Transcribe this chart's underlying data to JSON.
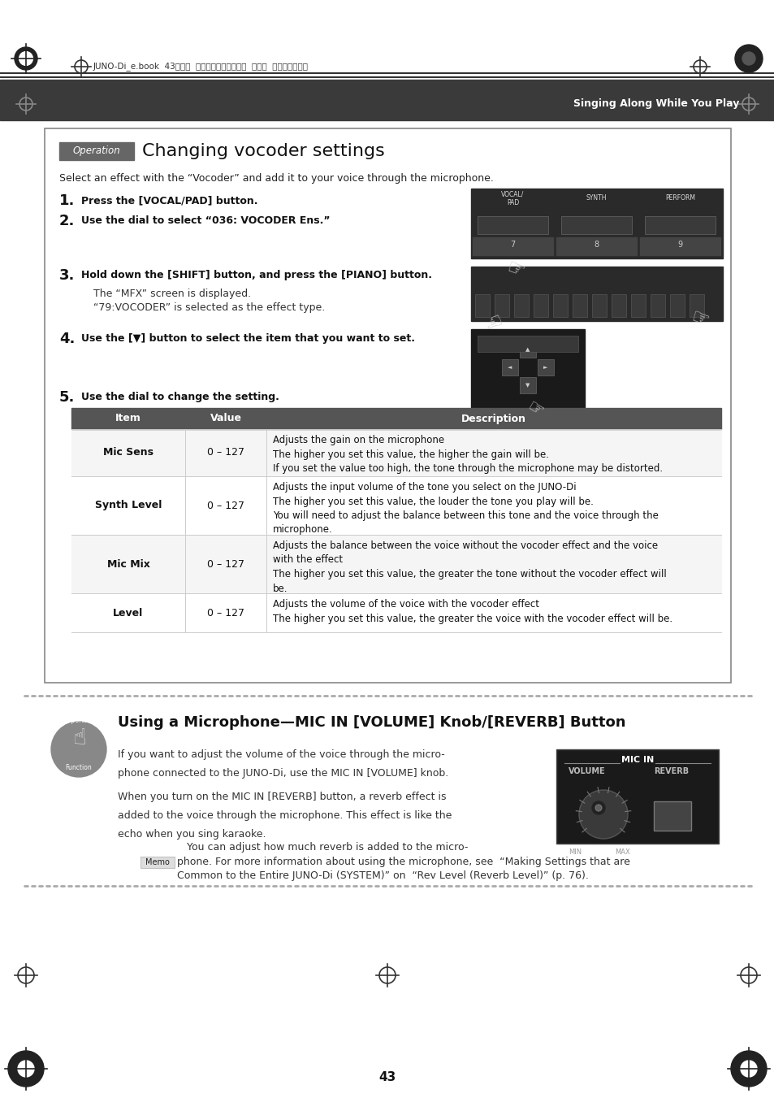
{
  "page_bg": "#ffffff",
  "header_bg": "#3a3a3a",
  "header_text_color": "#ffffff",
  "header_text": "Singing Along While You Play",
  "top_bar_text": "JUNO-Di_e.book  43ページ  ２００９年６月２２日  月曜日  午前９時２３分",
  "operation_label": "Operation",
  "operation_label_bg": "#666666",
  "operation_label_color": "#ffffff",
  "title": "Changing vocoder settings",
  "intro": "Select an effect with the “Vocoder” and add it to your voice through the microphone.",
  "table_header_bg": "#555555",
  "table_header_color": "#ffffff",
  "table_rows": [
    {
      "item": "Mic Sens",
      "value": "0 – 127",
      "desc": "Adjusts the gain on the microphone\nThe higher you set this value, the higher the gain will be.\nIf you set the value too high, the tone through the microphone may be distorted."
    },
    {
      "item": "Synth Level",
      "value": "0 – 127",
      "desc": "Adjusts the input volume of the tone you select on the JUNO-Di\nThe higher you set this value, the louder the tone you play will be.\nYou will need to adjust the balance between this tone and the voice through the\nmicrophone."
    },
    {
      "item": "Mic Mix",
      "value": "0 – 127",
      "desc": "Adjusts the balance between the voice without the vocoder effect and the voice\nwith the effect\nThe higher you set this value, the greater the tone without the vocoder effect will\nbe."
    },
    {
      "item": "Level",
      "value": "0 – 127",
      "desc": "Adjusts the volume of the voice with the vocoder effect\nThe higher you set this value, the greater the voice with the vocoder effect will be."
    }
  ],
  "section2_title": "Using a Microphone—MIC IN [VOLUME] Knob/[REVERB] Button",
  "section2_body1": "If you want to adjust the volume of the voice through the micro-\nphone connected to the JUNO-Di, use the MIC IN [VOLUME] knob.",
  "section2_body2": "When you turn on the MIC IN [REVERB] button, a reverb effect is\nadded to the voice through the microphone. This effect is like the\necho when you sing karaoke.",
  "section2_memo_prefix": "You can adjust how much reverb is added to the micro-",
  "section2_memo_label": "Memo",
  "section2_memo_text": "phone. For more information about using the microphone, see  “Making Settings that are\nCommon to the Entire JUNO-Di (SYSTEM)” on  “Rev Level (Reverb Level)” (p. 76).",
  "page_number": "43",
  "dotted_line_color": "#aaaaaa",
  "content_box_border": "#888888",
  "content_box_bg": "#ffffff",
  "memo_label_bg": "#dddddd",
  "memo_label_color": "#000000"
}
